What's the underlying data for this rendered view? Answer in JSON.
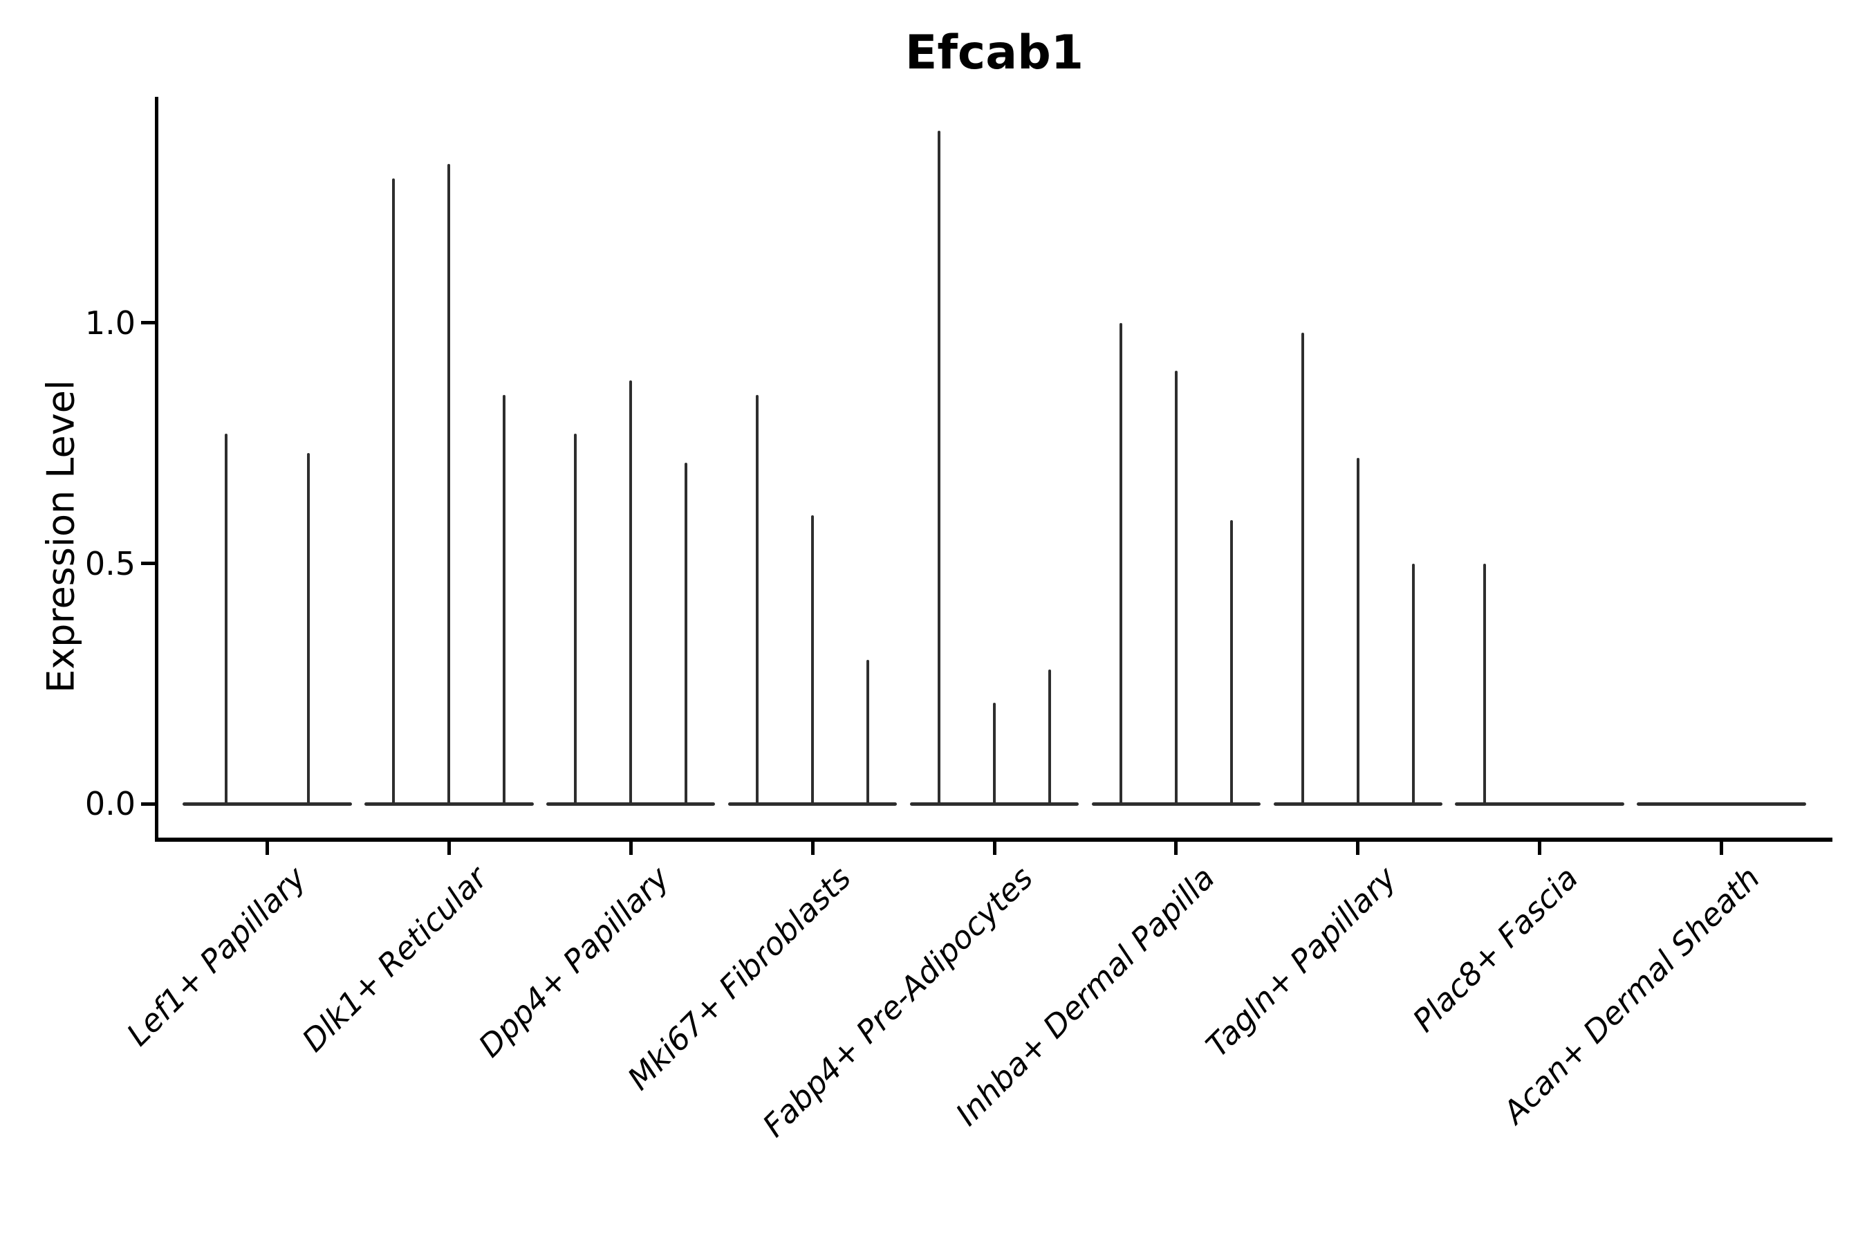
{
  "chart_data": {
    "type": "violin",
    "title": "Efcab1",
    "xlabel": "",
    "ylabel": "Expression Level",
    "ytick_labels": [
      "0.0",
      "0.5",
      "1.0"
    ],
    "ytick_values": [
      0.0,
      0.5,
      1.0
    ],
    "ylim": [
      -0.07,
      1.47
    ],
    "xlim": [
      -0.61,
      8.61
    ],
    "grid": false,
    "legend": "none",
    "violin_color": "#2e2e2e",
    "axis_color": "#000000",
    "categories": [
      "Lef1+ Papillary",
      "Dlk1+ Reticular",
      "Dpp4+ Papillary",
      "Mki67+ Fibroblasts",
      "Fabp4+ Pre-Adipocytes",
      "Inhba+ Dermal Papilla",
      "Tagln+ Papillary",
      "Plac8+ Fascia",
      "Acan+ Dermal Sheath"
    ],
    "groups": [
      {
        "label": "Lef1+ Papillary",
        "center": 0,
        "half_width": 0.465,
        "violins": [
          {
            "offset": -0.225,
            "max": 0.77
          },
          {
            "offset": 0.225,
            "max": 0.73
          }
        ]
      },
      {
        "label": "Dlk1+ Reticular",
        "center": 1,
        "half_width": 0.465,
        "violins": [
          {
            "offset": -0.304,
            "max": 1.3
          },
          {
            "offset": 0,
            "max": 1.33
          },
          {
            "offset": 0.304,
            "max": 0.85
          }
        ]
      },
      {
        "label": "Dpp4+ Papillary",
        "center": 2,
        "half_width": 0.465,
        "violins": [
          {
            "offset": -0.304,
            "max": 0.77
          },
          {
            "offset": 0,
            "max": 0.88
          },
          {
            "offset": 0.304,
            "max": 0.71
          }
        ]
      },
      {
        "label": "Mki67+ Fibroblasts",
        "center": 3,
        "half_width": 0.465,
        "violins": [
          {
            "offset": -0.304,
            "max": 0.85
          },
          {
            "offset": 0,
            "max": 0.6
          },
          {
            "offset": 0.304,
            "max": 0.3
          }
        ]
      },
      {
        "label": "Fabp4+ Pre-Adipocytes",
        "center": 4,
        "half_width": 0.465,
        "violins": [
          {
            "offset": -0.304,
            "max": 1.4
          },
          {
            "offset": 0,
            "max": 0.21
          },
          {
            "offset": 0.304,
            "max": 0.28
          }
        ]
      },
      {
        "label": "Inhba+ Dermal Papilla",
        "center": 5,
        "half_width": 0.465,
        "violins": [
          {
            "offset": -0.304,
            "max": 1.0
          },
          {
            "offset": 0,
            "max": 0.9
          },
          {
            "offset": 0.304,
            "max": 0.59
          }
        ]
      },
      {
        "label": "Tagln+ Papillary",
        "center": 6,
        "half_width": 0.465,
        "violins": [
          {
            "offset": -0.304,
            "max": 0.98
          },
          {
            "offset": 0,
            "max": 0.72
          },
          {
            "offset": 0.304,
            "max": 0.5
          }
        ]
      },
      {
        "label": "Plac8+ Fascia",
        "center": 7,
        "half_width": 0.465,
        "violins": [
          {
            "offset": -0.304,
            "max": 0.5
          },
          {
            "offset": 0,
            "max": 0.0
          },
          {
            "offset": 0.304,
            "max": 0.0
          }
        ]
      },
      {
        "label": "Acan+ Dermal Sheath",
        "center": 8,
        "half_width": 0.465,
        "violins": [
          {
            "offset": -0.304,
            "max": 0.0
          },
          {
            "offset": 0,
            "max": 0.0
          },
          {
            "offset": 0.304,
            "max": 0.0
          }
        ]
      }
    ]
  }
}
